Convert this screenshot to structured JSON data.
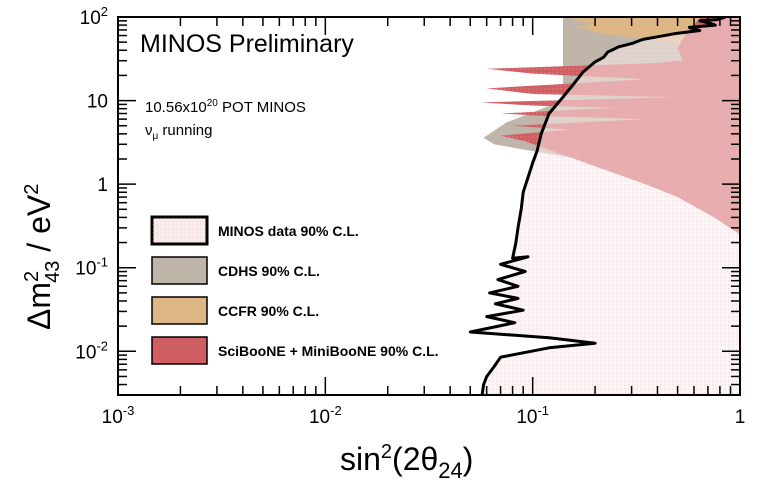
{
  "chart_data": {
    "type": "area",
    "title": "MINOS Preliminary",
    "annotations": {
      "exposure_base": "10.56x10",
      "exposure_exp": "20",
      "exposure_unit": " POT MINOS",
      "mode_nu": "ν",
      "mode_sub": "μ",
      "mode_text": " running"
    },
    "xlabel": {
      "a": "sin",
      "b": "2",
      "c": "(2θ",
      "d": "24",
      "e": ")"
    },
    "ylabel": {
      "a": "Δm",
      "b": "2",
      "c": "43",
      "d": " / eV",
      "e": "2"
    },
    "xscale": "log",
    "yscale": "log",
    "xlim": [
      0.001,
      1
    ],
    "ylim": [
      0.003,
      100
    ],
    "xticks": [
      {
        "v": 0.001,
        "base": "10",
        "exp": "-3"
      },
      {
        "v": 0.01,
        "base": "10",
        "exp": "-2"
      },
      {
        "v": 0.1,
        "base": "10",
        "exp": "-1"
      },
      {
        "v": 1,
        "base": "1",
        "exp": ""
      }
    ],
    "yticks": [
      {
        "v": 0.01,
        "base": "10",
        "exp": "-2"
      },
      {
        "v": 0.1,
        "base": "10",
        "exp": "-1"
      },
      {
        "v": 1,
        "base": "1",
        "exp": ""
      },
      {
        "v": 10,
        "base": "10",
        "exp": ""
      },
      {
        "v": 100,
        "base": "10",
        "exp": "2"
      }
    ],
    "colors": {
      "minos_fill": "#fbecec",
      "cdhs": "#bfb5a8",
      "ccfr": "#ddb785",
      "sciboone": "#cf5f63",
      "title": "#e8201c"
    },
    "legend": {
      "position": "lower-left",
      "entries": [
        {
          "label": "MINOS data 90% C.L.",
          "color": "#fbecec",
          "border": "#000000"
        },
        {
          "label": "CDHS 90% C.L.",
          "color": "#bfb5a8",
          "border": "#000000"
        },
        {
          "label": "CCFR 90% C.L.",
          "color": "#ddb785",
          "border": "#000000"
        },
        {
          "label": "SciBooNE + MiniBooNE 90% C.L.",
          "color": "#cf5f63",
          "border": "#000000"
        }
      ]
    },
    "series": [
      {
        "name": "MINOS data 90% C.L.",
        "kind": "contour",
        "points": [
          [
            0.85,
            100
          ],
          [
            0.78,
            93
          ],
          [
            0.64,
            90
          ],
          [
            0.72,
            84
          ],
          [
            0.76,
            80
          ],
          [
            0.57,
            75
          ],
          [
            0.64,
            69
          ],
          [
            0.48,
            63
          ],
          [
            0.4,
            58
          ],
          [
            0.34,
            54
          ],
          [
            0.3,
            48
          ],
          [
            0.26,
            44
          ],
          [
            0.23,
            38
          ],
          [
            0.22,
            33
          ],
          [
            0.2,
            29
          ],
          [
            0.175,
            22
          ],
          [
            0.155,
            15
          ],
          [
            0.14,
            11
          ],
          [
            0.12,
            7
          ],
          [
            0.11,
            4
          ],
          [
            0.105,
            2.5
          ],
          [
            0.1,
            1.8
          ],
          [
            0.095,
            1.2
          ],
          [
            0.09,
            0.8
          ],
          [
            0.088,
            0.5
          ],
          [
            0.085,
            0.3
          ],
          [
            0.083,
            0.2
          ],
          [
            0.08,
            0.13
          ],
          [
            0.095,
            0.135
          ],
          [
            0.07,
            0.11
          ],
          [
            0.092,
            0.09
          ],
          [
            0.068,
            0.072
          ],
          [
            0.085,
            0.06
          ],
          [
            0.062,
            0.05
          ],
          [
            0.085,
            0.043
          ],
          [
            0.066,
            0.037
          ],
          [
            0.09,
            0.031
          ],
          [
            0.06,
            0.026
          ],
          [
            0.082,
            0.022
          ],
          [
            0.05,
            0.017
          ],
          [
            0.12,
            0.0145
          ],
          [
            0.2,
            0.0125
          ],
          [
            0.12,
            0.011
          ],
          [
            0.07,
            0.0085
          ],
          [
            0.065,
            0.0065
          ],
          [
            0.06,
            0.005
          ],
          [
            0.058,
            0.004
          ],
          [
            0.057,
            0.003
          ]
        ]
      },
      {
        "name": "CDHS 90% C.L.",
        "kind": "boundary",
        "points": [
          [
            0.14,
            10
          ],
          [
            0.075,
            5.5
          ],
          [
            0.058,
            3.6
          ],
          [
            0.065,
            3
          ],
          [
            0.09,
            2.6
          ],
          [
            0.15,
            2.1
          ],
          [
            0.24,
            1.6
          ],
          [
            0.5,
            0.9
          ],
          [
            1,
            0.5
          ]
        ]
      },
      {
        "name": "CCFR 90% C.L.",
        "kind": "boundary",
        "points": [
          [
            0.14,
            100
          ],
          [
            0.16,
            93
          ],
          [
            0.17,
            88
          ],
          [
            0.2,
            84
          ],
          [
            0.18,
            80
          ],
          [
            0.16,
            76
          ],
          [
            0.18,
            72
          ],
          [
            0.2,
            66
          ],
          [
            0.23,
            62
          ],
          [
            0.3,
            57
          ],
          [
            0.4,
            52
          ],
          [
            0.55,
            47
          ],
          [
            1,
            38
          ]
        ]
      },
      {
        "name": "SciBooNE + MiniBooNE 90% C.L.",
        "kind": "boundary",
        "points": [
          [
            0.65,
            100
          ],
          [
            0.55,
            65
          ],
          [
            0.5,
            42
          ],
          [
            0.53,
            30
          ],
          [
            0.38,
            28
          ],
          [
            0.06,
            24
          ],
          [
            0.1,
            21
          ],
          [
            0.35,
            18
          ],
          [
            0.06,
            14
          ],
          [
            0.1,
            12
          ],
          [
            0.5,
            11
          ],
          [
            0.056,
            9.5
          ],
          [
            0.1,
            8.7
          ],
          [
            0.25,
            8.2
          ],
          [
            0.07,
            7
          ],
          [
            0.12,
            6.5
          ],
          [
            0.35,
            6
          ],
          [
            0.08,
            5
          ],
          [
            0.15,
            4.5
          ],
          [
            0.07,
            3.8
          ],
          [
            0.09,
            3.3
          ],
          [
            0.11,
            2.8
          ],
          [
            0.13,
            2.4
          ],
          [
            0.16,
            2
          ],
          [
            0.22,
            1.5
          ],
          [
            0.35,
            1
          ],
          [
            0.5,
            0.7
          ],
          [
            0.75,
            0.4
          ],
          [
            1,
            0.25
          ]
        ]
      }
    ]
  }
}
